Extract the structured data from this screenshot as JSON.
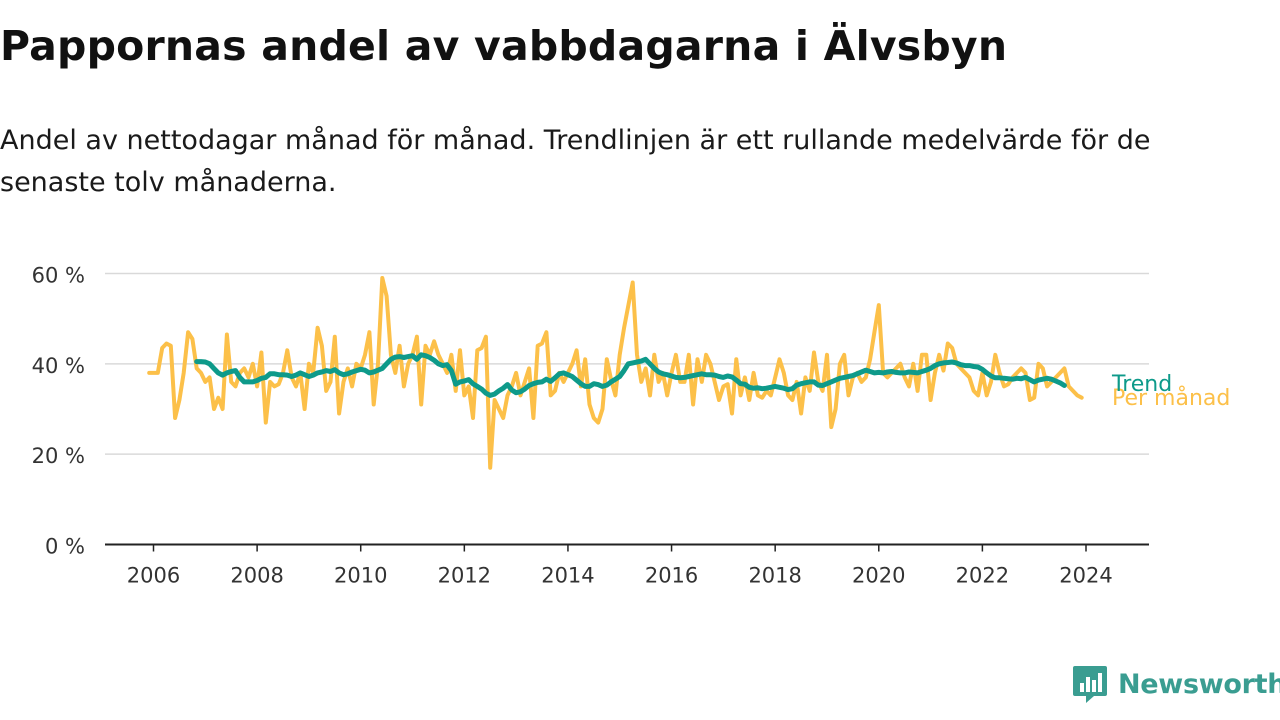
{
  "title": "Pappornas andel av vabbdagarna i Älvsbyn",
  "subtitle": "Andel av nettodagar månad för månad. Trendlinjen är ett rullande medelvärde för de senaste tolv månaderna.",
  "brand": {
    "name": "Newsworthy",
    "color": "#3a9d91",
    "icon": "bar-chart-logo-icon"
  },
  "chart_data": {
    "type": "line",
    "xlabel": "",
    "ylabel": "",
    "ylim": [
      0,
      60
    ],
    "yticks": [
      0,
      20,
      40,
      60
    ],
    "ytick_labels": [
      "0 %",
      "20 %",
      "40 %",
      "60 %"
    ],
    "xlim": [
      2006,
      2025.3
    ],
    "xticks": [
      2006,
      2008,
      2010,
      2012,
      2014,
      2016,
      2018,
      2020,
      2022,
      2024
    ],
    "xtick_labels": [
      "2006",
      "2008",
      "2010",
      "2012",
      "2014",
      "2016",
      "2018",
      "2020",
      "2022",
      "2024"
    ],
    "grid": true,
    "series": [
      {
        "name": "Per månad",
        "color": "#fcc049",
        "x_start": 2005.917,
        "x_step": 0.08333,
        "values": [
          38,
          38,
          38,
          43.5,
          44.5,
          44,
          28,
          32,
          38,
          47,
          45.5,
          39,
          38,
          36,
          37,
          30,
          32.5,
          30,
          46.5,
          36,
          35,
          38,
          39,
          37,
          40,
          35,
          42.5,
          27,
          36,
          35,
          35.5,
          38,
          43,
          37,
          35,
          38,
          30,
          40,
          38,
          48,
          44,
          34,
          36,
          46,
          29,
          36,
          39,
          35,
          40,
          39,
          42,
          47,
          31,
          40,
          59,
          55,
          42,
          38,
          44,
          35,
          40,
          42,
          46,
          31,
          44,
          42,
          45,
          42,
          40,
          38,
          42,
          34,
          43,
          33,
          35,
          28,
          43,
          43.5,
          46,
          17,
          32,
          30,
          28,
          33,
          35,
          38,
          33,
          36,
          39,
          28,
          44,
          44.5,
          47,
          33,
          34,
          38,
          36,
          38,
          40,
          43,
          35,
          41,
          31,
          28,
          27,
          30,
          41,
          36.5,
          33,
          42,
          48,
          53,
          58,
          42,
          36,
          39,
          33,
          42,
          36,
          38,
          33,
          38,
          42,
          36,
          36,
          42,
          31,
          41,
          36,
          42,
          40,
          36,
          32,
          35,
          35.5,
          29,
          41,
          33,
          37,
          32,
          38,
          33,
          32.5,
          34,
          33,
          37,
          41,
          38,
          33,
          32,
          36,
          29,
          37,
          34,
          42.5,
          36,
          34,
          42,
          26,
          30,
          40,
          42,
          33,
          37,
          38,
          36,
          37,
          41,
          47,
          53,
          38,
          37,
          38,
          39,
          40,
          37,
          35,
          40,
          34,
          42,
          42,
          32,
          38,
          42,
          38.5,
          44.5,
          43.5,
          40,
          39,
          38,
          37,
          34,
          33,
          38,
          33,
          36,
          42,
          38,
          35,
          35.5,
          37,
          38,
          39,
          38,
          32,
          32.5,
          40,
          39,
          35,
          36,
          37,
          38,
          39,
          35,
          34,
          33,
          32.5
        ]
      },
      {
        "name": "Trend",
        "color": "#0e9a8a",
        "x_start": 2006.833,
        "x_step": 0.08333,
        "values": [
          40.5,
          40.5,
          40.4,
          40.0,
          39.0,
          38.0,
          37.5,
          38.0,
          38.3,
          38.5,
          37.0,
          36.0,
          36.0,
          36.0,
          36.3,
          36.8,
          37.0,
          37.8,
          37.8,
          37.6,
          37.6,
          37.5,
          37.2,
          37.5,
          38.0,
          37.6,
          37.2,
          37.5,
          38.0,
          38.2,
          38.5,
          38.3,
          38.7,
          38.0,
          37.6,
          37.8,
          38.2,
          38.5,
          38.8,
          38.6,
          38.0,
          38.2,
          38.6,
          39.0,
          40.0,
          41.0,
          41.5,
          41.6,
          41.4,
          41.6,
          41.8,
          41.0,
          42.0,
          41.8,
          41.4,
          40.8,
          40.0,
          39.6,
          39.8,
          38.5,
          35.5,
          36.0,
          36.2,
          36.5,
          35.6,
          35.0,
          34.4,
          33.5,
          33.0,
          33.3,
          34.0,
          34.6,
          35.4,
          34.2,
          33.6,
          33.8,
          34.4,
          35.2,
          35.6,
          35.9,
          36.0,
          36.6,
          36.1,
          36.9,
          37.8,
          38.0,
          37.6,
          37.2,
          36.4,
          35.6,
          35.0,
          35.0,
          35.6,
          35.4,
          35.0,
          35.3,
          36.0,
          36.6,
          37.2,
          38.5,
          40.0,
          40.2,
          40.4,
          40.6,
          41.0,
          40.0,
          39.0,
          38.2,
          37.8,
          37.6,
          37.3,
          37.0,
          36.9,
          37.0,
          37.2,
          37.4,
          37.6,
          37.8,
          37.6,
          37.6,
          37.5,
          37.2,
          37.0,
          37.3,
          37.1,
          36.4,
          35.6,
          35.5,
          34.8,
          34.6,
          34.7,
          34.5,
          34.6,
          34.8,
          35.0,
          34.8,
          34.6,
          34.3,
          34.5,
          35.3,
          35.6,
          35.8,
          36.0,
          36.0,
          35.3,
          35.2,
          35.6,
          36.0,
          36.4,
          36.8,
          37.0,
          37.2,
          37.4,
          37.8,
          38.2,
          38.6,
          38.3,
          38.0,
          38.1,
          38.0,
          38.2,
          38.3,
          38.1,
          38.0,
          38.0,
          38.2,
          38.1,
          38.0,
          38.3,
          38.6,
          39.0,
          39.6,
          40.0,
          40.2,
          40.3,
          40.4,
          40.2,
          39.8,
          39.6,
          39.6,
          39.4,
          39.3,
          38.8,
          38.0,
          37.3,
          36.9,
          36.9,
          36.8,
          36.7,
          36.6,
          36.8,
          36.7,
          37.0,
          36.5,
          36.0,
          36.4,
          36.6,
          36.8,
          36.6,
          36.2,
          35.8,
          35.2
        ]
      }
    ]
  }
}
